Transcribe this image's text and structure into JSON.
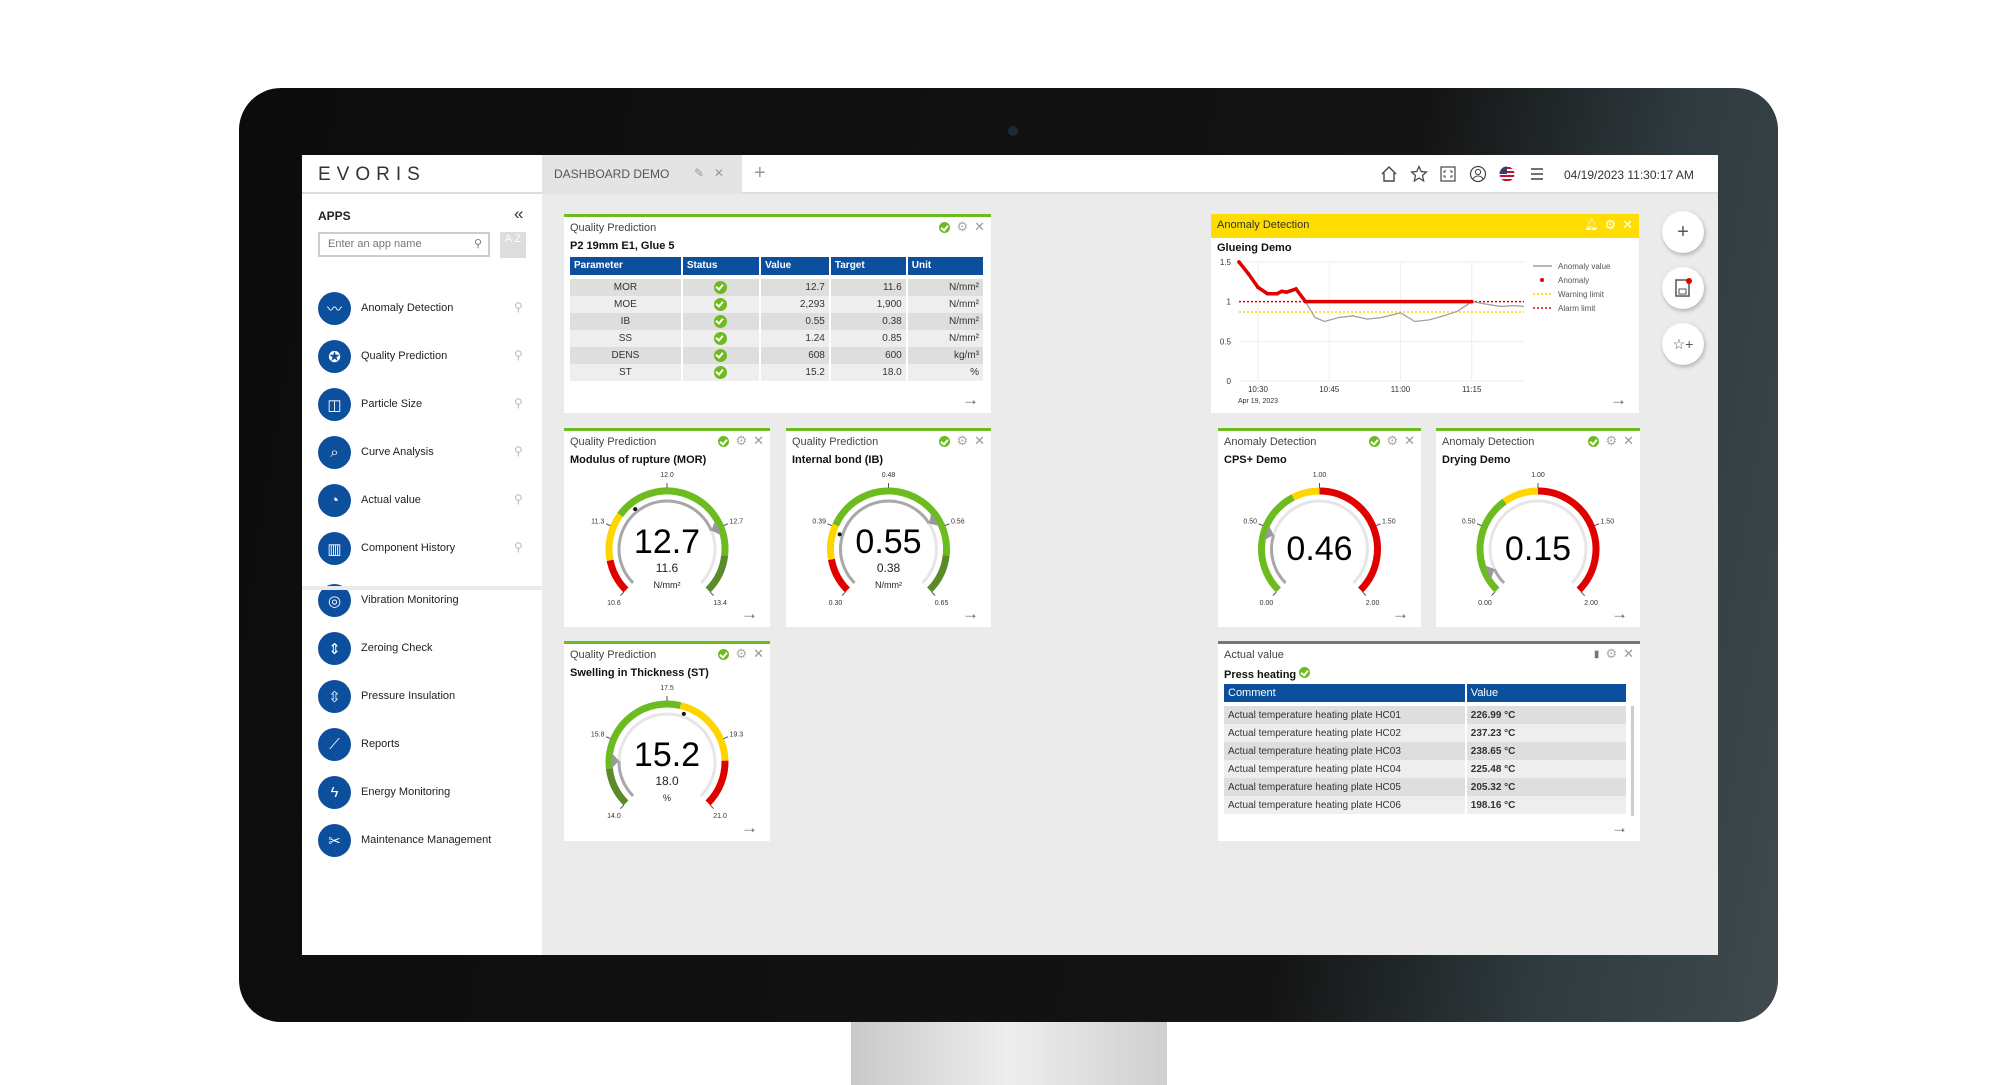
{
  "header": {
    "logo": "EVORIS",
    "tab_label": "DASHBOARD DEMO",
    "datetime": "04/19/2023 11:30:17 AM",
    "icons": [
      "home-icon",
      "star-icon",
      "fullscreen-icon",
      "user-icon",
      "us-flag-icon",
      "menu-icon"
    ]
  },
  "sidebar": {
    "title": "APPS",
    "search_placeholder": "Enter an app name",
    "sort_label": "A Z",
    "pinned": [
      {
        "label": "Anomaly Detection",
        "icon": "anomaly-wave-icon"
      },
      {
        "label": "Quality Prediction",
        "icon": "quality-badge-icon"
      },
      {
        "label": "Particle Size",
        "icon": "camera-bars-icon"
      },
      {
        "label": "Curve Analysis",
        "icon": "magnifier-curve-icon"
      },
      {
        "label": "Actual value",
        "icon": "gauge-icon"
      },
      {
        "label": "Component History",
        "icon": "history-bars-icon"
      }
    ],
    "others": [
      {
        "label": "Vibration Monitoring",
        "icon": "bearing-icon"
      },
      {
        "label": "Zeroing Check",
        "icon": "zeroing-icon"
      },
      {
        "label": "Pressure Insulation",
        "icon": "pressure-icon"
      },
      {
        "label": "Reports",
        "icon": "report-chart-icon"
      },
      {
        "label": "Energy Monitoring",
        "icon": "lightning-icon"
      },
      {
        "label": "Maintenance Management",
        "icon": "tools-icon"
      }
    ]
  },
  "quality_table": {
    "title": "Quality Prediction",
    "subtitle": "P2 19mm E1, Glue 5",
    "columns": [
      "Parameter",
      "Status",
      "Value",
      "Target",
      "Unit"
    ],
    "rows": [
      [
        "MOR",
        "ok",
        "12.7",
        "11.6",
        "N/mm²"
      ],
      [
        "MOE",
        "ok",
        "2,293",
        "1,900",
        "N/mm²"
      ],
      [
        "IB",
        "ok",
        "0.55",
        "0.38",
        "N/mm²"
      ],
      [
        "SS",
        "ok",
        "1.24",
        "0.85",
        "N/mm²"
      ],
      [
        "DENS",
        "ok",
        "608",
        "600",
        "kg/m³"
      ],
      [
        "ST",
        "ok",
        "15.2",
        "18.0",
        "%"
      ]
    ]
  },
  "gauges": [
    {
      "title": "Quality Prediction",
      "subtitle": "Modulus of rupture (MOR)",
      "value": "12.7",
      "target": "11.6",
      "unit": "N/mm²",
      "min": 10.6,
      "max": 13.4,
      "ticks": [
        "10.6",
        "11.3",
        "12.0",
        "12.7",
        "13.4"
      ],
      "bands": [
        [
          10.6,
          10.95,
          "#e00000"
        ],
        [
          10.95,
          11.44,
          "#ffd500"
        ],
        [
          11.44,
          13.0,
          "#6cbb1f"
        ],
        [
          13.0,
          13.4,
          "#5a8a2a"
        ]
      ]
    },
    {
      "title": "Quality Prediction",
      "subtitle": "Internal bond (IB)",
      "value": "0.55",
      "target": "0.38",
      "unit": "N/mm²",
      "min": 0.3,
      "max": 0.65,
      "ticks": [
        "0.30",
        "0.39",
        "0.48",
        "0.56",
        "0.65"
      ],
      "bands": [
        [
          0.3,
          0.345,
          "#e00000"
        ],
        [
          0.345,
          0.39,
          "#ffd500"
        ],
        [
          0.39,
          0.6,
          "#6cbb1f"
        ],
        [
          0.6,
          0.65,
          "#5a8a2a"
        ]
      ]
    },
    {
      "title": "Quality Prediction",
      "subtitle": "Swelling in Thickness (ST)",
      "value": "15.2",
      "target": "18.0",
      "unit": "%",
      "min": 14.0,
      "max": 21.0,
      "ticks": [
        "14.0",
        "15.8",
        "17.5",
        "19.3",
        "21.0"
      ],
      "bands": [
        [
          14.0,
          15.0,
          "#5a8a2a"
        ],
        [
          15.0,
          17.85,
          "#6cbb1f"
        ],
        [
          17.85,
          19.8,
          "#ffd500"
        ],
        [
          19.8,
          21.0,
          "#e00000"
        ]
      ]
    },
    {
      "title": "Anomaly Detection",
      "subtitle": "CPS+ Demo",
      "value": "0.46",
      "min": 0,
      "max": 2,
      "ticks": [
        "0.00",
        "0.50",
        "1.00",
        "1.50",
        "2.00"
      ],
      "bands": [
        [
          0,
          0.8,
          "#6cbb1f"
        ],
        [
          0.8,
          1.0,
          "#ffd500"
        ],
        [
          1.0,
          2.0,
          "#e00000"
        ]
      ]
    },
    {
      "title": "Anomaly Detection",
      "subtitle": "Drying Demo",
      "value": "0.15",
      "min": 0,
      "max": 2,
      "ticks": [
        "0.00",
        "0.50",
        "1.00",
        "1.50",
        "2.00"
      ],
      "bands": [
        [
          0,
          0.74,
          "#6cbb1f"
        ],
        [
          0.74,
          1.0,
          "#ffd500"
        ],
        [
          1.0,
          2.0,
          "#e00000"
        ]
      ]
    }
  ],
  "anomaly_chart": {
    "title": "Anomaly Detection",
    "subtitle": "Glueing Demo",
    "header_color": "#ffdd00",
    "chart_data": {
      "type": "line",
      "ylim": [
        0,
        1.5
      ],
      "yticks": [
        "0",
        "0.5",
        "1",
        "1.5"
      ],
      "xticks": [
        "10:30",
        "10:45",
        "11:00",
        "11:15"
      ],
      "xlim": [
        "10:26",
        "11:26"
      ],
      "date_label": "Apr 19, 2023",
      "legend": [
        "Anomaly value",
        "Anomaly",
        "Warning limit",
        "Alarm limit"
      ],
      "legend_position": "right",
      "warning_limit": 0.87,
      "alarm_limit": 1.0,
      "series": [
        {
          "name": "Anomaly value",
          "x": [
            "10:26",
            "10:28",
            "10:30",
            "10:32",
            "10:34",
            "10:35",
            "10:36",
            "10:38",
            "10:40",
            "10:42",
            "10:44",
            "10:47",
            "10:50",
            "10:53",
            "10:56",
            "11:00",
            "11:03",
            "11:06",
            "11:09",
            "11:12",
            "11:15",
            "11:18",
            "11:21",
            "11:24",
            "11:26"
          ],
          "y": [
            1.5,
            1.35,
            1.18,
            1.1,
            1.1,
            1.13,
            1.12,
            1.16,
            1.0,
            0.8,
            0.75,
            0.8,
            0.82,
            0.78,
            0.8,
            0.86,
            0.75,
            0.77,
            0.82,
            0.88,
            1.0,
            0.97,
            0.94,
            0.95,
            0.94
          ]
        }
      ]
    }
  },
  "actual_value": {
    "title": "Actual value",
    "subtitle": "Press heating",
    "columns": [
      "Comment",
      "Value"
    ],
    "rows": [
      [
        "Actual temperature heating plate HC01",
        "226.99 °C"
      ],
      [
        "Actual temperature heating plate HC02",
        "237.23 °C"
      ],
      [
        "Actual temperature heating plate HC03",
        "238.65 °C"
      ],
      [
        "Actual temperature heating plate HC04",
        "225.48 °C"
      ],
      [
        "Actual temperature heating plate HC05",
        "205.32 °C"
      ],
      [
        "Actual temperature heating plate HC06",
        "198.16 °C"
      ]
    ]
  },
  "colors": {
    "brand_blue": "#0c4f9c",
    "ok_green": "#6cbb1f",
    "alarm_red": "#e00000",
    "warning_yellow": "#ffd500"
  }
}
